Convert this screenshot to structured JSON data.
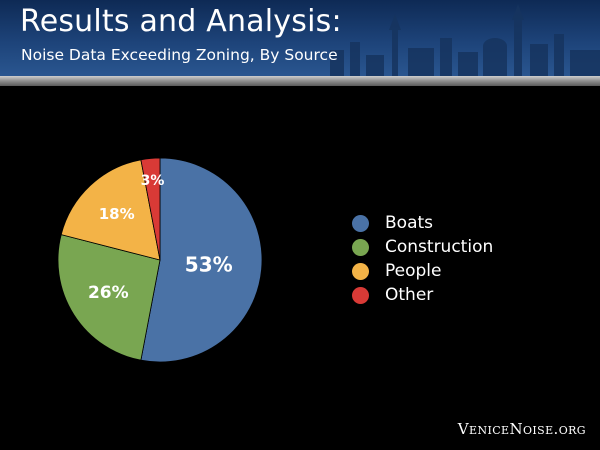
{
  "header": {
    "title": "Results and Analysis:",
    "subtitle": "Noise Data Exceeding Zoning, By Source"
  },
  "footer": {
    "site": "VeniceNoise.org"
  },
  "colors": {
    "header_bg": "#1d4379",
    "Boats": "#4a72a6",
    "Construction": "#79a651",
    "People": "#f3b347",
    "Other": "#d93a36"
  },
  "chart_data": {
    "type": "pie",
    "title": "",
    "categories": [
      "Boats",
      "Construction",
      "People",
      "Other"
    ],
    "values": [
      53,
      26,
      18,
      3
    ],
    "labels": [
      "53%",
      "26%",
      "18%",
      "3%"
    ],
    "unit": "%",
    "legend_position": "right"
  }
}
